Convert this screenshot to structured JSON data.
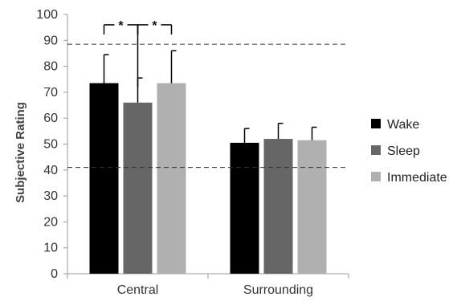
{
  "chart_data": {
    "type": "bar",
    "ylabel": "Subjective Rating",
    "ylim": [
      0,
      100
    ],
    "yticks": [
      "0",
      "10",
      "20",
      "30",
      "40",
      "50",
      "60",
      "70",
      "80",
      "90",
      "100"
    ],
    "categories": [
      "Central",
      "Surrounding"
    ],
    "series": [
      {
        "name": "Wake",
        "color": "#000000",
        "values": [
          73.5,
          50.5
        ],
        "error": [
          11,
          5.5
        ]
      },
      {
        "name": "Sleep",
        "color": "#666666",
        "values": [
          66,
          52
        ],
        "error": [
          9.5,
          6
        ]
      },
      {
        "name": "Immediate",
        "color": "#b0b0b0",
        "values": [
          73.5,
          51.5
        ],
        "error": [
          12.5,
          5
        ]
      }
    ],
    "reference_lines": [
      88.5,
      41
    ],
    "significance": [
      {
        "category": 0,
        "from_series": 0,
        "to_series": 1,
        "label": "*"
      },
      {
        "category": 0,
        "from_series": 1,
        "to_series": 2,
        "label": "*"
      }
    ],
    "legend_position": "right",
    "grid": false
  }
}
